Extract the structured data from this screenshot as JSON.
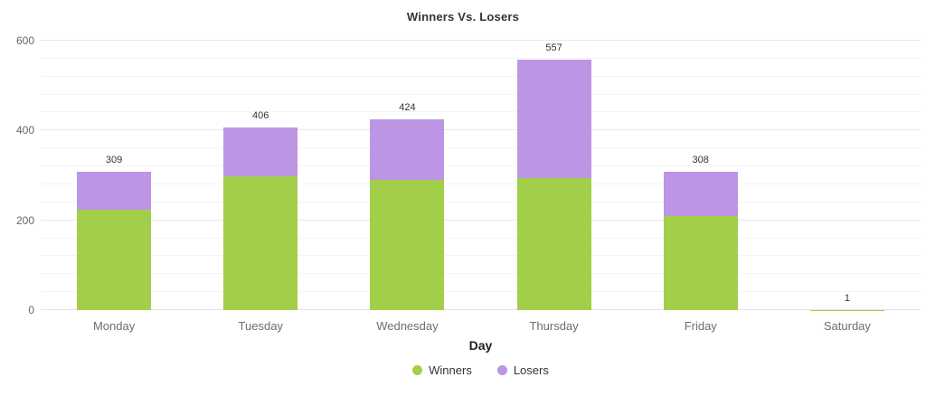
{
  "chart_data": {
    "type": "bar",
    "stacked": true,
    "title": "Winners Vs. Losers",
    "xlabel": "Day",
    "ylabel": "",
    "categories": [
      "Monday",
      "Tuesday",
      "Wednesday",
      "Thursday",
      "Friday",
      "Saturday"
    ],
    "series": [
      {
        "name": "Winners",
        "color": "#a3ce4a",
        "values": [
          224,
          298,
          289,
          294,
          210,
          1
        ]
      },
      {
        "name": "Losers",
        "color": "#bc95e4",
        "values": [
          85,
          108,
          135,
          263,
          98,
          0
        ]
      }
    ],
    "totals": [
      309,
      406,
      424,
      557,
      308,
      1
    ],
    "ylim": [
      0,
      600
    ],
    "yticks": [
      0,
      200,
      400,
      600
    ],
    "minor_tick": 40,
    "grid": true,
    "legend_position": "bottom"
  }
}
